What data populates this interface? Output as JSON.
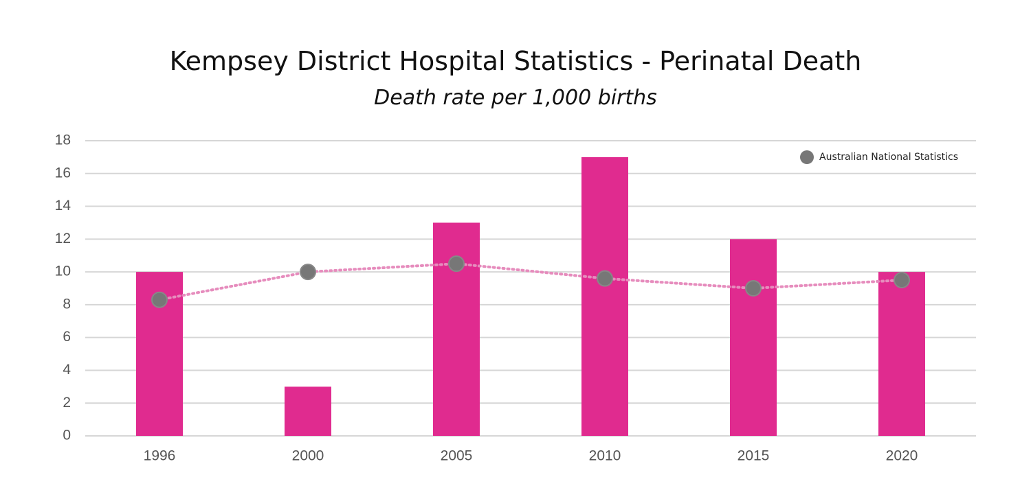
{
  "chart_data": {
    "type": "bar",
    "title": "Kempsey District Hospital Statistics - Perinatal Death",
    "subtitle": "Death rate per 1,000 births",
    "categories": [
      "1996",
      "2000",
      "2005",
      "2010",
      "2015",
      "2020"
    ],
    "series": [
      {
        "type": "bar",
        "color": "#e02b8f",
        "values": [
          10,
          3,
          13,
          17,
          12,
          10
        ]
      },
      {
        "type": "line",
        "name": "Australian National Statistics",
        "color": "#777777",
        "line_color": "#e68cbd",
        "values": [
          8.3,
          10,
          10.5,
          9.6,
          9,
          9.5
        ]
      }
    ],
    "ylim": [
      0,
      18
    ],
    "yticks": [
      0,
      2,
      4,
      6,
      8,
      10,
      12,
      14,
      16,
      18
    ],
    "grid": true,
    "legend": "top-right"
  }
}
